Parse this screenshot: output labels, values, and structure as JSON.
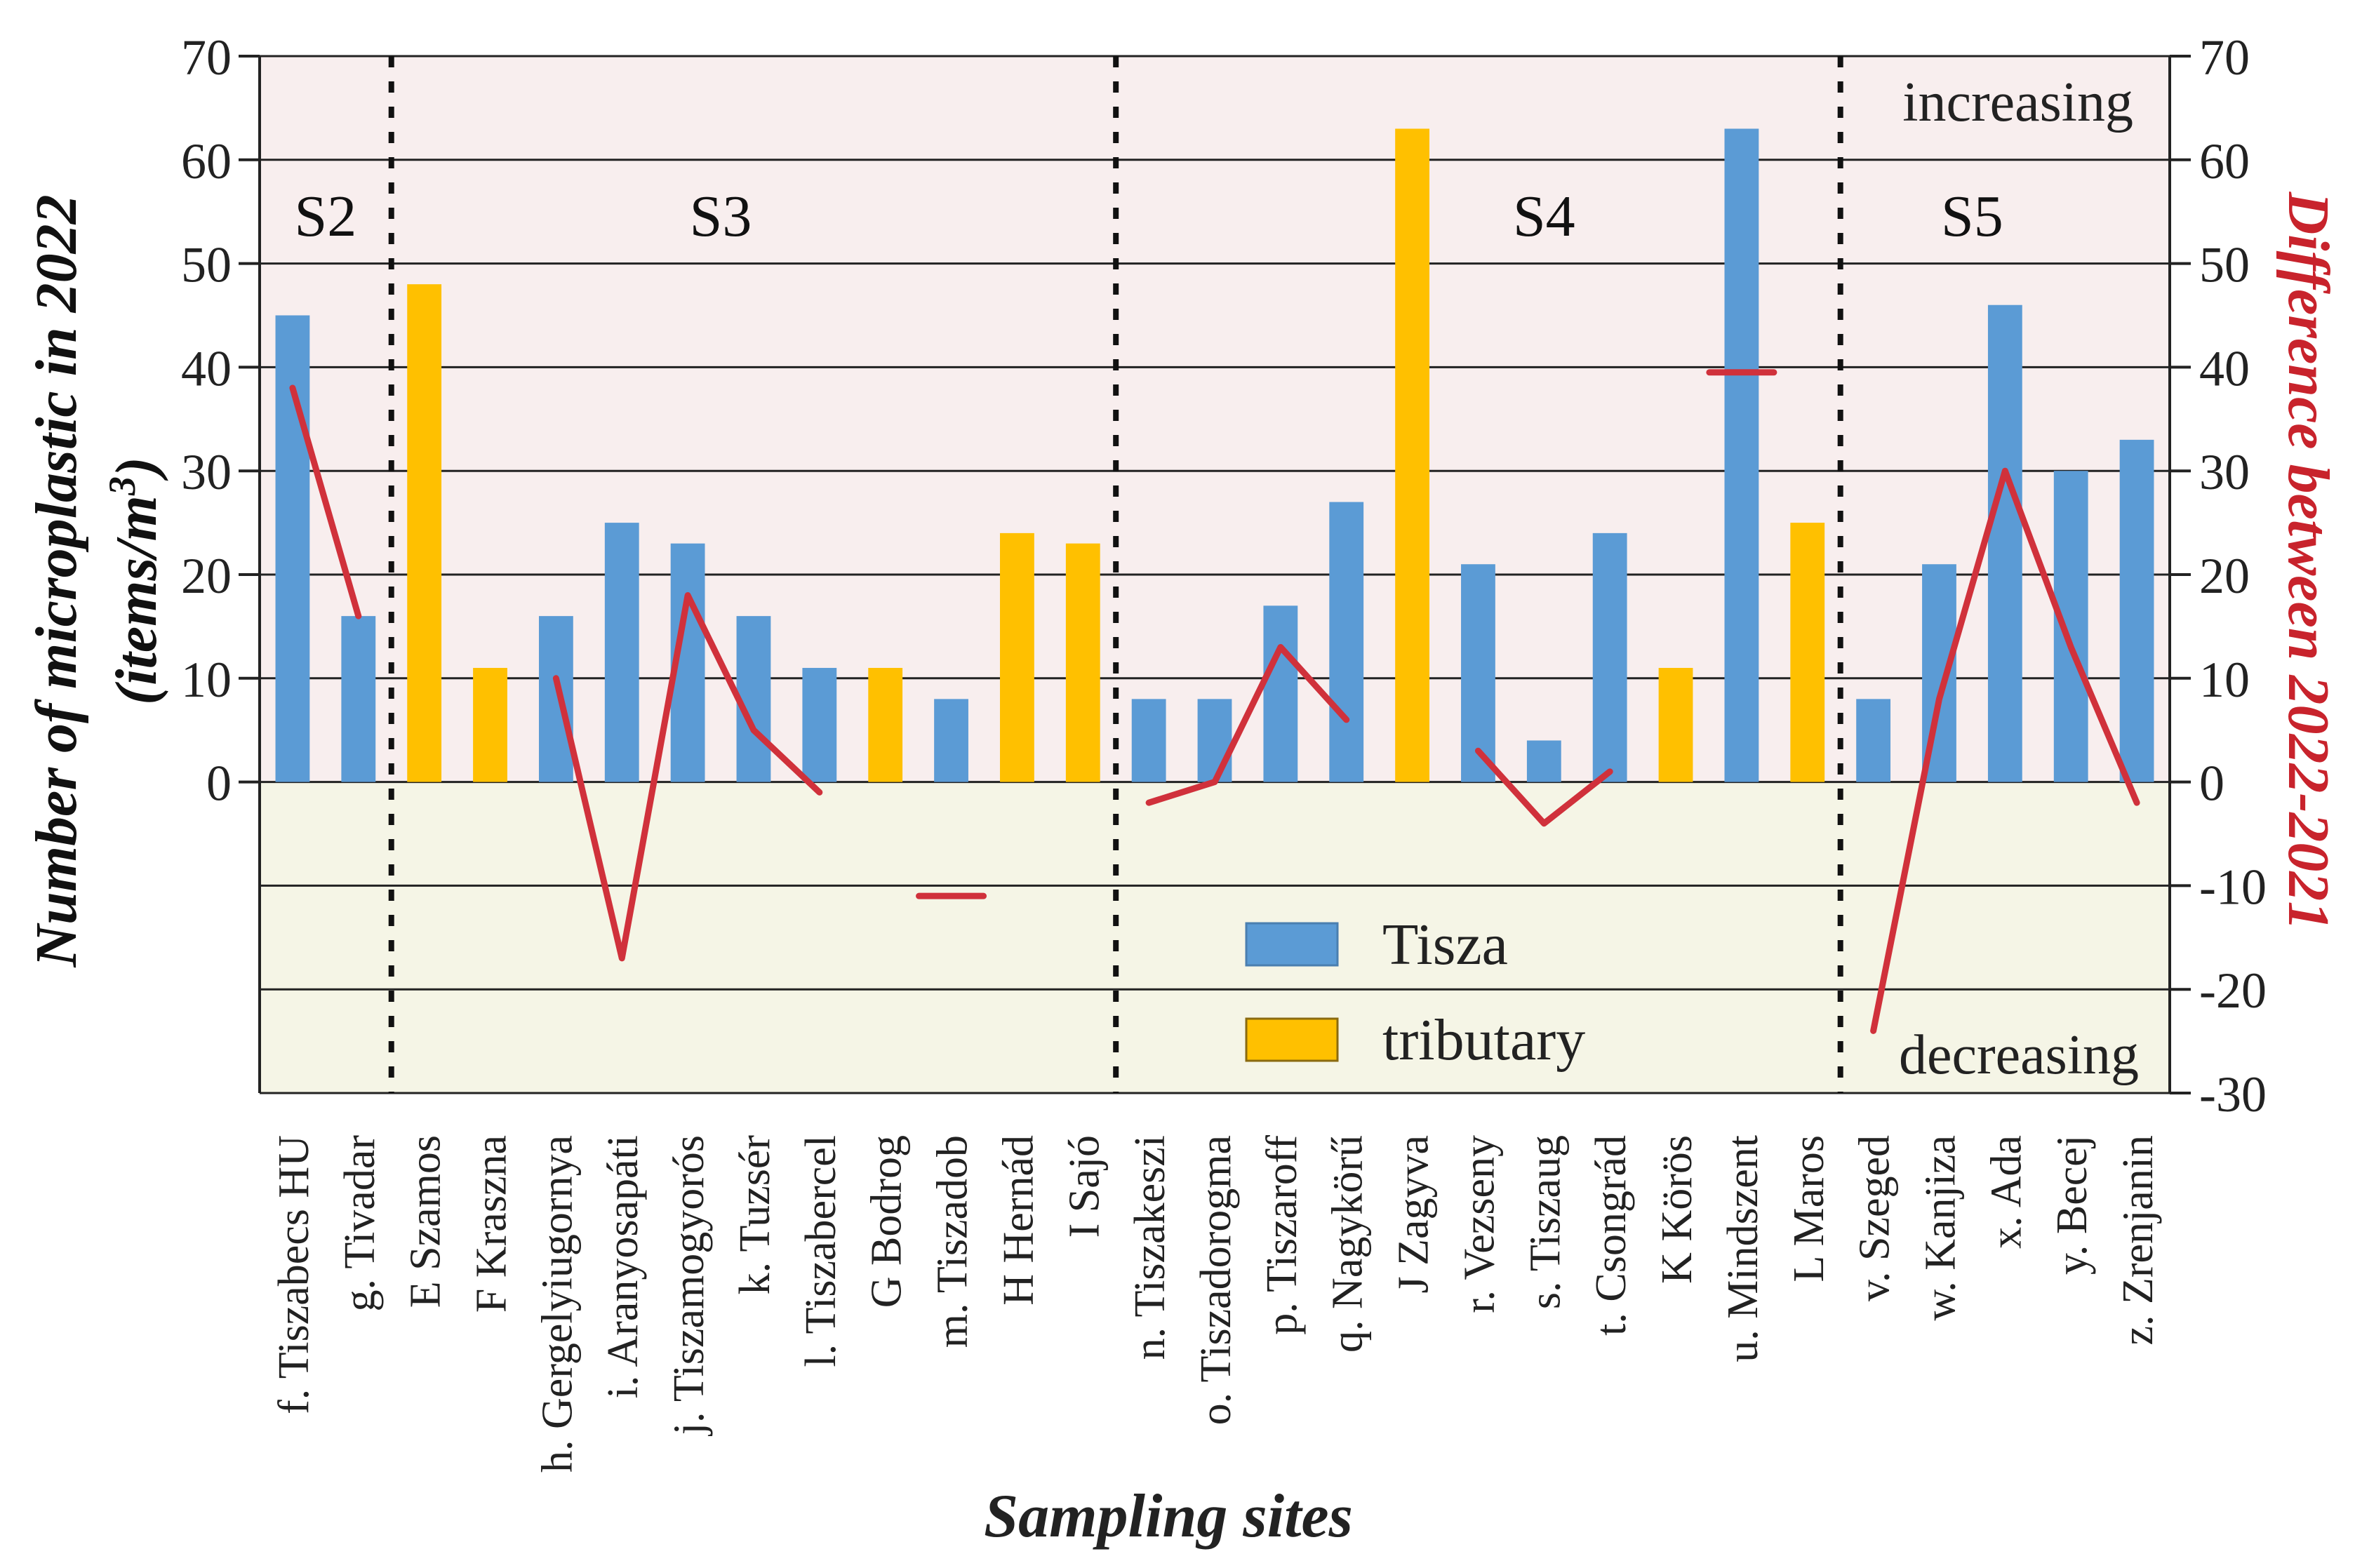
{
  "chart_data": {
    "type": "bar",
    "ylabel_line1": "Number of microplastic in 2022",
    "ylabel_line2_base": "(items/m",
    "ylabel_line2_sup": "3",
    "ylabel_line2_end": ")",
    "y2label": "Difference between 2022-2021",
    "xlabel": "Sampling sites",
    "ylim": [
      -30,
      70
    ],
    "y_ticks": [
      "0",
      "10",
      "20",
      "30",
      "40",
      "50",
      "60",
      "70"
    ],
    "y2_ticks": [
      "-30",
      "-20",
      "-10",
      "0",
      "10",
      "20",
      "30",
      "40",
      "50",
      "60",
      "70"
    ],
    "y2_tick_values": [
      -30,
      -20,
      -10,
      0,
      10,
      20,
      30,
      40,
      50,
      60,
      70
    ],
    "y_tick_values": [
      0,
      10,
      20,
      30,
      40,
      50,
      60,
      70
    ],
    "categories": [
      "f. Tiszabecs HU",
      "g. Tivadar",
      "E Szamos",
      "F Kraszna",
      "h. Gergelyiugornya",
      "i. Aranyosapáti",
      "j. Tiszamogyorós",
      "k. Tuzsér",
      "l. Tiszabercel",
      "G Bodrog",
      "m. Tiszadob",
      "H Hernád",
      "I Sajó",
      "n. Tiszakeszi",
      "o. Tiszadorogma",
      "p. Tiszaroff",
      "q. Nagykörű",
      "J Zagyva",
      "r. Vezseny",
      "s. Tiszaug",
      "t. Csongrád",
      "K Körös",
      "u. Mindszent",
      "L Maros",
      "v. Szeged",
      "w. Kanjiza",
      "x. Ada",
      "y. Becej",
      "z. Zrenjanin"
    ],
    "types": [
      "tisza",
      "tisza",
      "tributary",
      "tributary",
      "tisza",
      "tisza",
      "tisza",
      "tisza",
      "tisza",
      "tributary",
      "tisza",
      "tributary",
      "tributary",
      "tisza",
      "tisza",
      "tisza",
      "tisza",
      "tributary",
      "tisza",
      "tisza",
      "tisza",
      "tributary",
      "tisza",
      "tributary",
      "tisza",
      "tisza",
      "tisza",
      "tisza",
      "tisza"
    ],
    "values": [
      45,
      16,
      48,
      11,
      16,
      25,
      23,
      16,
      11,
      11,
      8,
      24,
      23,
      8,
      8,
      17,
      27,
      63,
      21,
      4,
      24,
      11,
      63,
      25,
      8,
      21,
      46,
      30,
      33
    ],
    "difference_segments": [
      {
        "indices": [
          0,
          1
        ],
        "values": [
          38,
          16
        ]
      },
      {
        "indices": [
          4,
          5,
          6,
          7,
          8
        ],
        "values": [
          10,
          -17,
          18,
          5,
          -1
        ]
      },
      {
        "indices": [
          10
        ],
        "values": [
          -11
        ]
      },
      {
        "indices": [
          13,
          14,
          15,
          16
        ],
        "values": [
          -2,
          0,
          13,
          6
        ]
      },
      {
        "indices": [
          18,
          19,
          20
        ],
        "values": [
          3,
          -4,
          1
        ]
      },
      {
        "indices": [
          22
        ],
        "values": [
          39.5
        ]
      },
      {
        "indices": [
          24,
          25,
          26,
          27,
          28
        ],
        "values": [
          -24,
          8,
          30,
          13,
          -2
        ]
      }
    ],
    "sections": [
      {
        "label": "S2",
        "center_category": 0.5
      },
      {
        "label": "S3",
        "center_category": 6.5
      },
      {
        "label": "S4",
        "center_category": 19.0
      },
      {
        "label": "S5",
        "center_category": 25.5
      }
    ],
    "section_dividers_after_category": [
      1,
      12,
      23
    ],
    "annotations": {
      "increasing": "increasing",
      "decreasing": "decreasing"
    },
    "legend": [
      {
        "label": "Tisza",
        "color": "#5B9BD5"
      },
      {
        "label": "tributary",
        "color": "#FFC000"
      }
    ],
    "colors": {
      "tisza": "#5B9BD5",
      "tributary": "#FFC000",
      "difference_line": "#D0313B",
      "positive_region": "#F8EEEE",
      "negative_region": "#F5F5E6",
      "y2_label": "#C8232C"
    },
    "grid": true
  }
}
